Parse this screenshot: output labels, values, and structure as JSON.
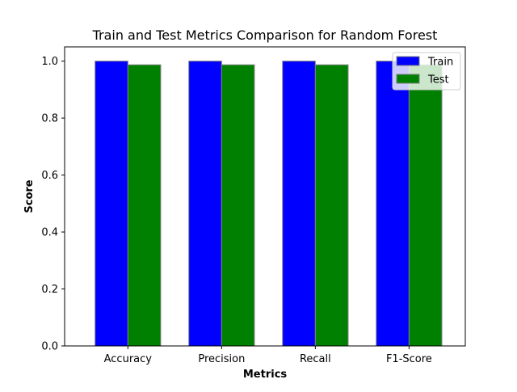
{
  "chart_data": {
    "type": "bar",
    "title": "Train and Test Metrics Comparison for Random Forest",
    "xlabel": "Metrics",
    "ylabel": "Score",
    "categories": [
      "Accuracy",
      "Precision",
      "Recall",
      "F1-Score"
    ],
    "series": [
      {
        "name": "Train",
        "values": [
          1.0,
          1.0,
          1.0,
          1.0
        ],
        "color": "#0000ff"
      },
      {
        "name": "Test",
        "values": [
          0.987,
          0.987,
          0.987,
          0.987
        ],
        "color": "#008000"
      }
    ],
    "ylim": [
      0,
      1.05
    ],
    "yticks": [
      "0.0",
      "0.2",
      "0.4",
      "0.6",
      "0.8",
      "1.0"
    ],
    "grid": false,
    "legend_position": "top-right",
    "bar_edge_color": "#808080"
  }
}
